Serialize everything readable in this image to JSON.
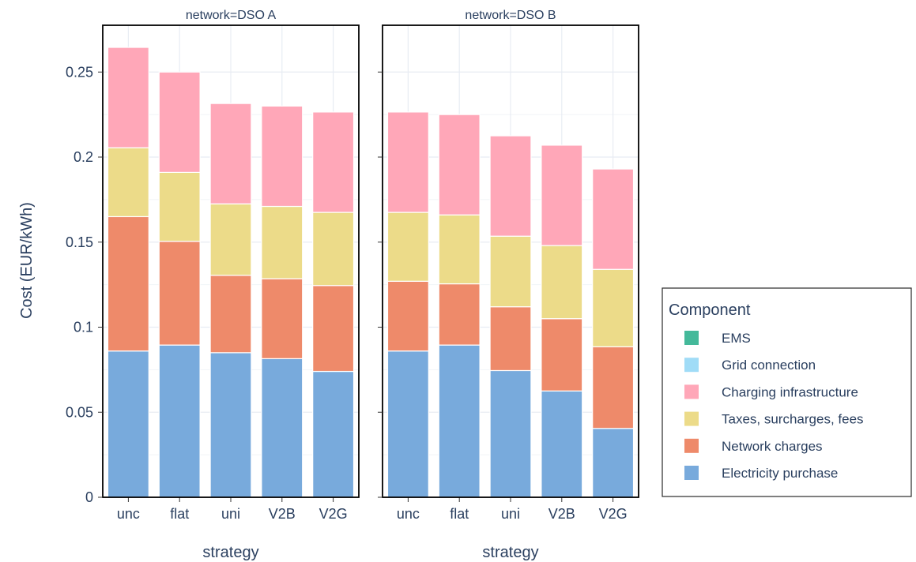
{
  "chart_data": {
    "type": "bar",
    "stacked": true,
    "ylabel": "Cost (EUR/kWh)",
    "ylim": [
      0,
      0.2775
    ],
    "yticks": [
      0,
      0.05,
      0.1,
      0.15,
      0.2,
      0.25
    ],
    "ytick_labels": [
      "0",
      "0.05",
      "0.1",
      "0.15",
      "0.2",
      "0.25"
    ],
    "grid": true,
    "categories": [
      "unc",
      "flat",
      "uni",
      "V2B",
      "V2G"
    ],
    "components": [
      {
        "name": "EMS",
        "color": "#44b99a"
      },
      {
        "name": "Grid connection",
        "color": "#a0dcf7"
      },
      {
        "name": "Charging infrastructure",
        "color": "#ffa7b8"
      },
      {
        "name": "Taxes, surcharges, fees",
        "color": "#ecdb89"
      },
      {
        "name": "Network charges",
        "color": "#ee8a6a"
      },
      {
        "name": "Electricity purchase",
        "color": "#78aadc"
      }
    ],
    "stack_order": [
      "Electricity purchase",
      "Network charges",
      "Taxes, surcharges, fees",
      "Charging infrastructure",
      "Grid connection",
      "EMS"
    ],
    "facets": [
      {
        "title": "network=DSO A",
        "xlabel": "strategy",
        "series": [
          {
            "name": "Electricity purchase",
            "values": [
              0.086,
              0.0895,
              0.085,
              0.0815,
              0.074
            ]
          },
          {
            "name": "Network charges",
            "values": [
              0.079,
              0.061,
              0.0455,
              0.047,
              0.0505
            ]
          },
          {
            "name": "Taxes, surcharges, fees",
            "values": [
              0.0405,
              0.0405,
              0.042,
              0.0425,
              0.043
            ]
          },
          {
            "name": "Charging infrastructure",
            "values": [
              0.059,
              0.059,
              0.059,
              0.059,
              0.059
            ]
          },
          {
            "name": "Grid connection",
            "values": [
              0,
              0,
              0,
              0,
              0
            ]
          },
          {
            "name": "EMS",
            "values": [
              0,
              0,
              0,
              0,
              0
            ]
          }
        ]
      },
      {
        "title": "network=DSO B",
        "xlabel": "strategy",
        "series": [
          {
            "name": "Electricity purchase",
            "values": [
              0.086,
              0.0895,
              0.0745,
              0.0625,
              0.0405
            ]
          },
          {
            "name": "Network charges",
            "values": [
              0.041,
              0.036,
              0.0375,
              0.0425,
              0.048
            ]
          },
          {
            "name": "Taxes, surcharges, fees",
            "values": [
              0.0405,
              0.0405,
              0.0415,
              0.043,
              0.0455
            ]
          },
          {
            "name": "Charging infrastructure",
            "values": [
              0.059,
              0.059,
              0.059,
              0.059,
              0.059
            ]
          },
          {
            "name": "Grid connection",
            "values": [
              0,
              0,
              0,
              0,
              0
            ]
          },
          {
            "name": "EMS",
            "values": [
              0,
              0,
              0,
              0,
              0
            ]
          }
        ]
      }
    ],
    "legend": {
      "title": "Component",
      "placement": "right"
    }
  }
}
